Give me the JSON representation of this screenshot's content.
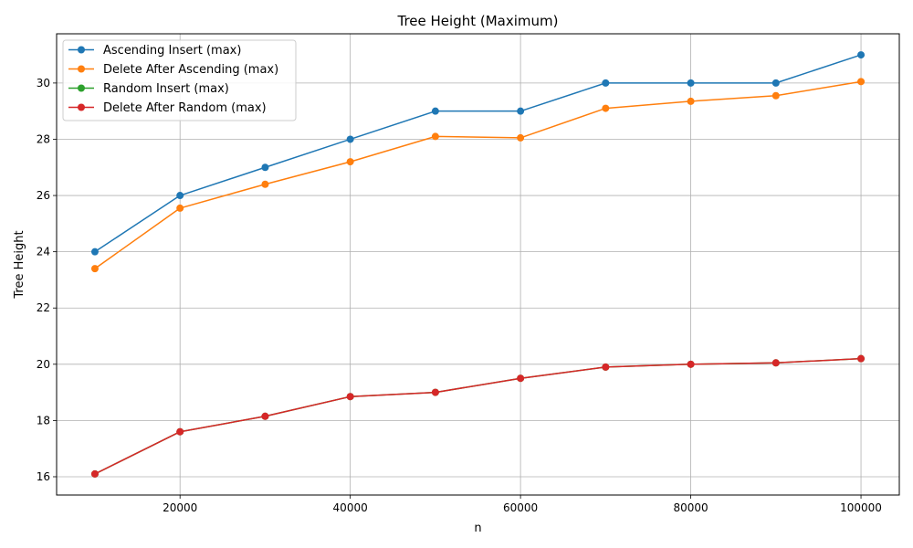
{
  "chart_data": {
    "type": "line",
    "title": "Tree Height (Maximum)",
    "xlabel": "n",
    "ylabel": "Tree Height",
    "x": [
      10000,
      20000,
      30000,
      40000,
      50000,
      60000,
      70000,
      80000,
      90000,
      100000
    ],
    "xlim": [
      5500,
      104500
    ],
    "ylim": [
      15.35,
      31.75
    ],
    "xticks": [
      20000,
      40000,
      60000,
      80000,
      100000
    ],
    "yticks": [
      16,
      18,
      20,
      22,
      24,
      26,
      28,
      30
    ],
    "grid": true,
    "legend_position": "top-left",
    "series": [
      {
        "name": "Ascending Insert (max)",
        "color": "#1f77b4",
        "marker": "circle",
        "values": [
          24,
          26,
          27,
          28,
          29,
          29,
          30,
          30,
          30,
          31
        ]
      },
      {
        "name": "Delete After Ascending (max)",
        "color": "#ff7f0e",
        "marker": "circle",
        "values": [
          23.4,
          25.55,
          26.4,
          27.2,
          28.1,
          28.05,
          29.1,
          29.35,
          29.55,
          30.05
        ]
      },
      {
        "name": "Random Insert (max)",
        "color": "#2ca02c",
        "marker": "circle",
        "values": [
          16.1,
          17.6,
          18.15,
          18.85,
          19.0,
          19.5,
          19.9,
          20.0,
          20.05,
          20.2
        ]
      },
      {
        "name": "Delete After Random (max)",
        "color": "#d62728",
        "marker": "circle",
        "values": [
          16.1,
          17.6,
          18.15,
          18.85,
          19.0,
          19.5,
          19.9,
          20.0,
          20.05,
          20.2
        ]
      }
    ]
  }
}
